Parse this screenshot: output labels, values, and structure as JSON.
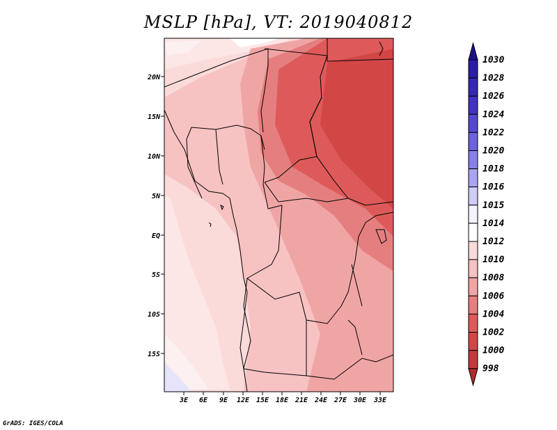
{
  "title": "MSLP [hPa], VT: 2019040812",
  "credit": "GrADS: IGES/COLA",
  "lat_labels": [
    "20N",
    "15N",
    "10N",
    "5N",
    "EQ",
    "5S",
    "10S",
    "15S"
  ],
  "lon_labels": [
    "3E",
    "6E",
    "9E",
    "12E",
    "15E",
    "18E",
    "21E",
    "24E",
    "27E",
    "30E",
    "33E"
  ],
  "colorbar": {
    "labels": [
      "1030",
      "1028",
      "1026",
      "1024",
      "1022",
      "1020",
      "1018",
      "1016",
      "1015",
      "1014",
      "1012",
      "1010",
      "1008",
      "1006",
      "1004",
      "1002",
      "1000",
      "998"
    ],
    "colors": [
      "#1e128c",
      "#2a1ea6",
      "#3528b4",
      "#4232c3",
      "#5448d0",
      "#6c62dc",
      "#8880e6",
      "#aaa4f0",
      "#d0ccf8",
      "#f4f2fd",
      "#ffffff",
      "#fbdada",
      "#f7c2c2",
      "#f0a5a5",
      "#e57f7f",
      "#de5a5a",
      "#d24646",
      "#c23a3a",
      "#b32a2a"
    ]
  },
  "map": {
    "region": "West and Central Africa",
    "lat_range": [
      -19.5,
      24.5
    ],
    "lon_range": [
      0.5,
      35
    ],
    "min_pressure_region": "Chad / Sudan / South Sudan (1002-1004 hPa)",
    "max_pressure_region": "South Atlantic, southwest corner (1014-1016 hPa)"
  }
}
